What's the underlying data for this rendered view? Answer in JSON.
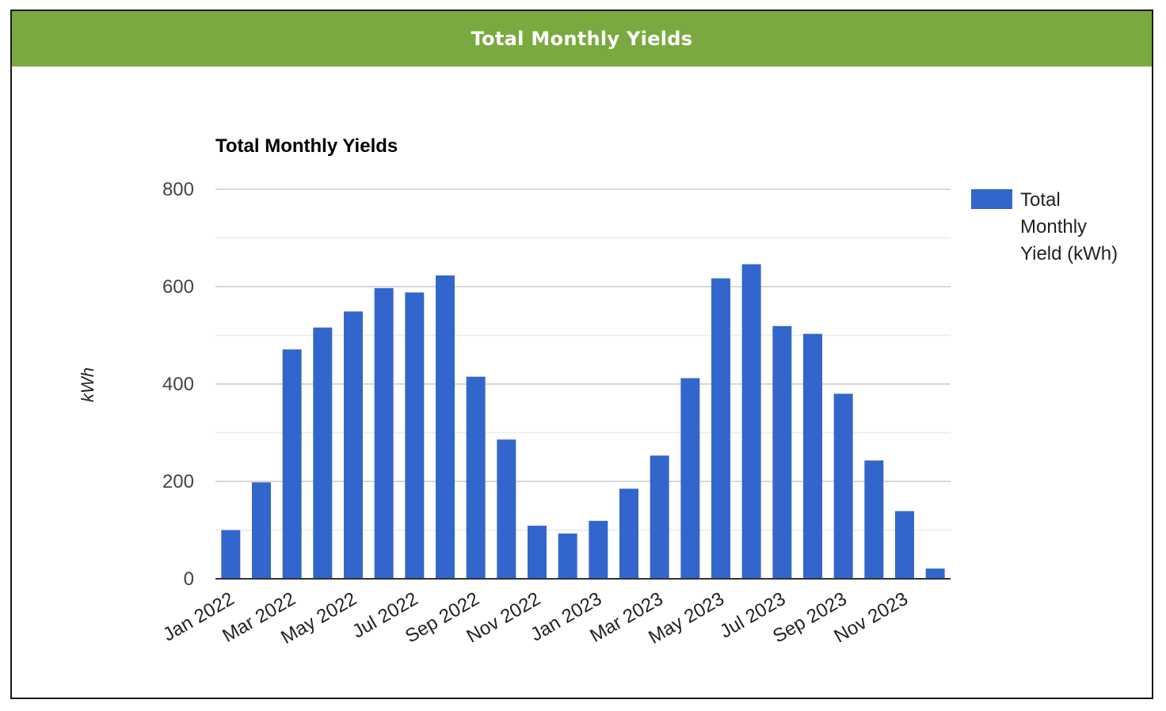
{
  "panel": {
    "header_title": "Total Monthly Yields"
  },
  "chart_data": {
    "type": "bar",
    "title": "Total Monthly Yields",
    "xlabel": "",
    "ylabel": "kWh",
    "ylim": [
      0,
      800
    ],
    "y_ticks": [
      0,
      200,
      400,
      600,
      800
    ],
    "grid": true,
    "legend_position": "right",
    "bar_color": "#3366cc",
    "categories": [
      "Jan 2022",
      "Feb 2022",
      "Mar 2022",
      "Apr 2022",
      "May 2022",
      "Jun 2022",
      "Jul 2022",
      "Aug 2022",
      "Sep 2022",
      "Oct 2022",
      "Nov 2022",
      "Dec 2022",
      "Jan 2023",
      "Feb 2023",
      "Mar 2023",
      "Apr 2023",
      "May 2023",
      "Jun 2023",
      "Jul 2023",
      "Aug 2023",
      "Sep 2023",
      "Oct 2023",
      "Nov 2023",
      "Dec 2023"
    ],
    "x_tick_labels": [
      "Jan 2022",
      "Mar 2022",
      "May 2022",
      "Jul 2022",
      "Sep 2022",
      "Nov 2022",
      "Jan 2023",
      "Mar 2023",
      "May 2023",
      "Jul 2023",
      "Sep 2023",
      "Nov 2023"
    ],
    "series": [
      {
        "name": "Total Monthly Yield (kWh)",
        "values": [
          100,
          198,
          471,
          516,
          549,
          597,
          588,
          623,
          415,
          286,
          109,
          93,
          119,
          185,
          253,
          412,
          617,
          646,
          519,
          503,
          380,
          243,
          139,
          21
        ]
      }
    ]
  }
}
